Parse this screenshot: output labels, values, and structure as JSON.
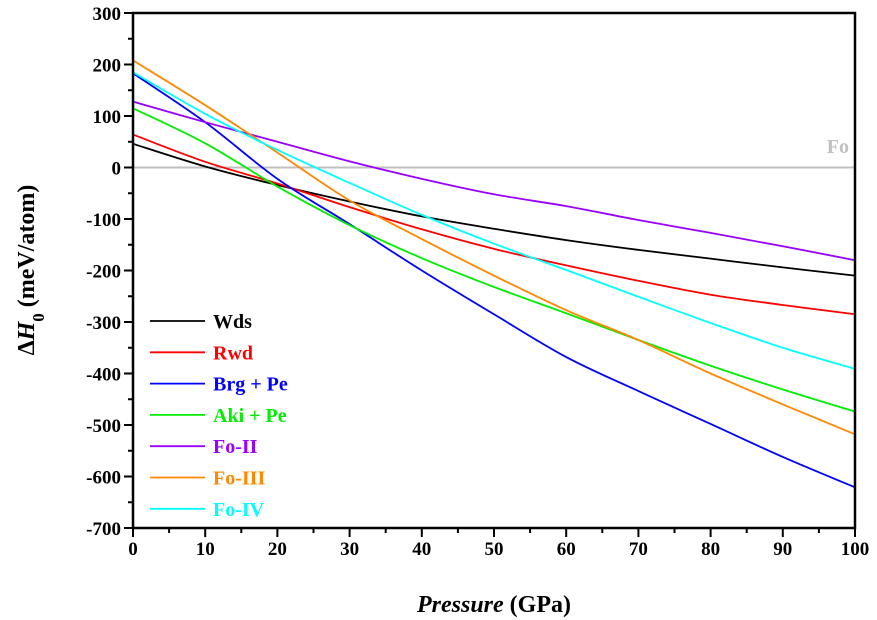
{
  "chart_data": {
    "type": "line",
    "title": "",
    "xlabel": {
      "italic": "Pressure",
      "normal": " (GPa)"
    },
    "ylabel": {
      "prefix": "Δ",
      "italic": "H",
      "sub": "0",
      "suffix": " (meV/atom)"
    },
    "xlim": [
      0,
      100
    ],
    "ylim": [
      -700,
      300
    ],
    "xticks": [
      0,
      10,
      20,
      30,
      40,
      50,
      60,
      70,
      80,
      90,
      100
    ],
    "yticks": [
      300,
      200,
      100,
      0,
      -100,
      -200,
      -300,
      -400,
      -500,
      -600,
      -700
    ],
    "grid": false,
    "legend_placement": "bottom-left",
    "reference_line": {
      "label": "Fo",
      "value": 0,
      "color": "#c0c0c0"
    },
    "x": [
      0,
      10,
      20,
      30,
      40,
      50,
      60,
      70,
      80,
      90,
      100
    ],
    "series": [
      {
        "name": "Wds",
        "color": "#000000",
        "values": [
          46,
          2,
          -34,
          -66,
          -95,
          -119,
          -141,
          -160,
          -177,
          -194,
          -210
        ]
      },
      {
        "name": "Rwd",
        "color": "#ff0000",
        "values": [
          64,
          11,
          -31,
          -77,
          -120,
          -158,
          -190,
          -220,
          -247,
          -267,
          -285
        ]
      },
      {
        "name": "Brg + Pe",
        "color": "#0000ff",
        "values": [
          183,
          88,
          -22,
          -110,
          -200,
          -285,
          -368,
          -434,
          -498,
          -562,
          -621
        ]
      },
      {
        "name": "Aki + Pe",
        "color": "#00ee00",
        "values": [
          115,
          47,
          -37,
          -112,
          -176,
          -232,
          -283,
          -335,
          -385,
          -431,
          -474
        ]
      },
      {
        "name": "Fo-II",
        "color": "#9900ff",
        "values": [
          128,
          88,
          50,
          12,
          -22,
          -52,
          -75,
          -102,
          -127,
          -153,
          -180
        ]
      },
      {
        "name": "Fo-III",
        "color": "#ff8800",
        "values": [
          208,
          121,
          29,
          -64,
          -139,
          -210,
          -277,
          -335,
          -400,
          -460,
          -518
        ]
      },
      {
        "name": "Fo-IV",
        "color": "#00ffff",
        "values": [
          185,
          104,
          34,
          -30,
          -92,
          -148,
          -199,
          -251,
          -302,
          -350,
          -391
        ]
      }
    ]
  }
}
